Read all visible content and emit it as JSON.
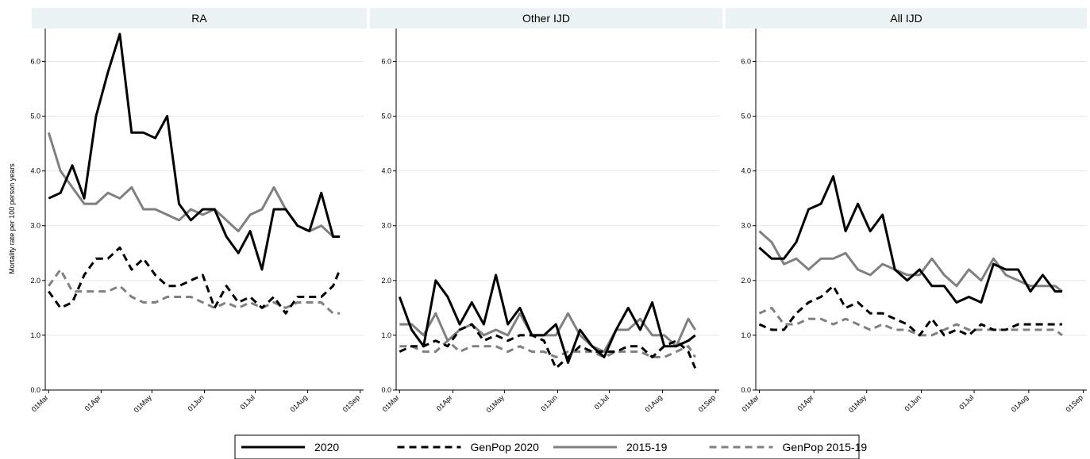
{
  "chart_data": {
    "type": "line",
    "ylabel": "Mortality rate per 100 person years",
    "ylim": [
      0,
      6.6
    ],
    "yticks": [
      "0.0",
      "1.0",
      "2.0",
      "3.0",
      "4.0",
      "5.0",
      "6.0"
    ],
    "ytick_values": [
      0,
      1,
      2,
      3,
      4,
      5,
      6
    ],
    "xticks": [
      "01Mar",
      "01Apr",
      "01May",
      "01Jun",
      "01Jul",
      "01Aug",
      "01Sep"
    ],
    "xtick_values": [
      0,
      31,
      61,
      92,
      122,
      153,
      184
    ],
    "xlim": [
      -2,
      186
    ],
    "x": [
      0,
      7,
      14,
      21,
      28,
      35,
      42,
      49,
      56,
      63,
      70,
      77,
      84,
      91,
      98,
      105,
      112,
      119,
      126,
      133,
      140,
      147,
      154,
      161,
      168,
      172
    ],
    "grid": "horizontal",
    "legend_position": "bottom",
    "series_styles": [
      {
        "name": "2020",
        "color": "#000000",
        "dash": "solid",
        "width": 3
      },
      {
        "name": "GenPop 2020",
        "color": "#000000",
        "dash": "dashed",
        "width": 3
      },
      {
        "name": "2015-19",
        "color": "#808080",
        "dash": "solid",
        "width": 3
      },
      {
        "name": "GenPop 2015-19",
        "color": "#808080",
        "dash": "dashed",
        "width": 3
      }
    ],
    "panels": [
      {
        "title": "RA",
        "series": [
          {
            "name": "2020",
            "values": [
              3.5,
              3.6,
              4.1,
              3.5,
              5.0,
              5.8,
              6.5,
              4.7,
              4.7,
              4.6,
              5.0,
              3.4,
              3.1,
              3.3,
              3.3,
              2.8,
              2.5,
              2.9,
              2.2,
              3.3,
              3.3,
              3.0,
              2.9,
              3.6,
              2.8,
              2.8
            ]
          },
          {
            "name": "GenPop 2020",
            "values": [
              1.8,
              1.5,
              1.6,
              2.1,
              2.4,
              2.4,
              2.6,
              2.2,
              2.4,
              2.1,
              1.9,
              1.9,
              2.0,
              2.1,
              1.5,
              1.9,
              1.6,
              1.7,
              1.5,
              1.7,
              1.4,
              1.7,
              1.7,
              1.7,
              1.9,
              2.2
            ]
          },
          {
            "name": "2015-19",
            "values": [
              4.7,
              4.0,
              3.7,
              3.4,
              3.4,
              3.6,
              3.5,
              3.7,
              3.3,
              3.3,
              3.2,
              3.1,
              3.3,
              3.2,
              3.3,
              3.1,
              2.9,
              3.2,
              3.3,
              3.7,
              3.3,
              3.0,
              2.9,
              3.0,
              2.8,
              2.8
            ]
          },
          {
            "name": "GenPop 2015-19",
            "values": [
              1.9,
              2.2,
              1.8,
              1.8,
              1.8,
              1.8,
              1.9,
              1.7,
              1.6,
              1.6,
              1.7,
              1.7,
              1.7,
              1.6,
              1.5,
              1.6,
              1.5,
              1.6,
              1.5,
              1.6,
              1.5,
              1.6,
              1.6,
              1.6,
              1.4,
              1.4
            ]
          }
        ]
      },
      {
        "title": "Other IJD",
        "series": [
          {
            "name": "2020",
            "values": [
              1.7,
              1.1,
              0.8,
              2.0,
              1.7,
              1.2,
              1.6,
              1.2,
              2.1,
              1.2,
              1.5,
              1.0,
              1.0,
              1.2,
              0.5,
              1.1,
              0.8,
              0.6,
              1.1,
              1.5,
              1.1,
              1.6,
              0.8,
              0.8,
              0.9,
              1.0
            ]
          },
          {
            "name": "GenPop 2020",
            "values": [
              0.7,
              0.8,
              0.8,
              0.9,
              0.8,
              1.1,
              1.2,
              0.9,
              1.0,
              0.9,
              1.0,
              1.0,
              0.9,
              0.4,
              0.6,
              0.8,
              0.7,
              0.7,
              0.7,
              0.8,
              0.8,
              0.6,
              0.8,
              0.9,
              0.7,
              0.4
            ]
          },
          {
            "name": "2015-19",
            "values": [
              1.2,
              1.2,
              1.0,
              1.4,
              0.9,
              1.1,
              1.2,
              1.0,
              1.1,
              1.0,
              1.4,
              1.0,
              1.0,
              1.0,
              1.4,
              1.0,
              0.8,
              0.7,
              1.1,
              1.1,
              1.3,
              1.0,
              1.0,
              0.8,
              1.3,
              1.1
            ]
          },
          {
            "name": "GenPop 2015-19",
            "values": [
              0.8,
              0.8,
              0.7,
              0.7,
              0.9,
              0.7,
              0.8,
              0.8,
              0.8,
              0.7,
              0.8,
              0.7,
              0.7,
              0.6,
              0.7,
              0.7,
              0.7,
              0.6,
              0.7,
              0.7,
              0.7,
              0.6,
              0.6,
              0.7,
              0.8,
              0.6
            ]
          }
        ]
      },
      {
        "title": "All IJD",
        "series": [
          {
            "name": "2020",
            "values": [
              2.6,
              2.4,
              2.4,
              2.7,
              3.3,
              3.4,
              3.9,
              2.9,
              3.4,
              2.9,
              3.2,
              2.2,
              2.0,
              2.2,
              1.9,
              1.9,
              1.6,
              1.7,
              1.6,
              2.3,
              2.2,
              2.2,
              1.8,
              2.1,
              1.8,
              1.8
            ]
          },
          {
            "name": "GenPop 2020",
            "values": [
              1.2,
              1.1,
              1.1,
              1.4,
              1.6,
              1.7,
              1.9,
              1.5,
              1.6,
              1.4,
              1.4,
              1.3,
              1.2,
              1.0,
              1.3,
              1.0,
              1.1,
              1.0,
              1.2,
              1.1,
              1.1,
              1.2,
              1.2,
              1.2,
              1.2,
              1.2
            ]
          },
          {
            "name": "2015-19",
            "values": [
              2.9,
              2.7,
              2.3,
              2.4,
              2.2,
              2.4,
              2.4,
              2.5,
              2.2,
              2.1,
              2.3,
              2.2,
              2.1,
              2.1,
              2.4,
              2.1,
              1.9,
              2.2,
              2.0,
              2.4,
              2.1,
              2.0,
              1.9,
              1.9,
              1.9,
              1.8
            ]
          },
          {
            "name": "GenPop 2015-19",
            "values": [
              1.4,
              1.5,
              1.2,
              1.2,
              1.3,
              1.3,
              1.2,
              1.3,
              1.2,
              1.1,
              1.2,
              1.1,
              1.1,
              1.0,
              1.0,
              1.1,
              1.2,
              1.1,
              1.1,
              1.1,
              1.1,
              1.1,
              1.1,
              1.1,
              1.1,
              1.0
            ]
          }
        ]
      }
    ]
  }
}
